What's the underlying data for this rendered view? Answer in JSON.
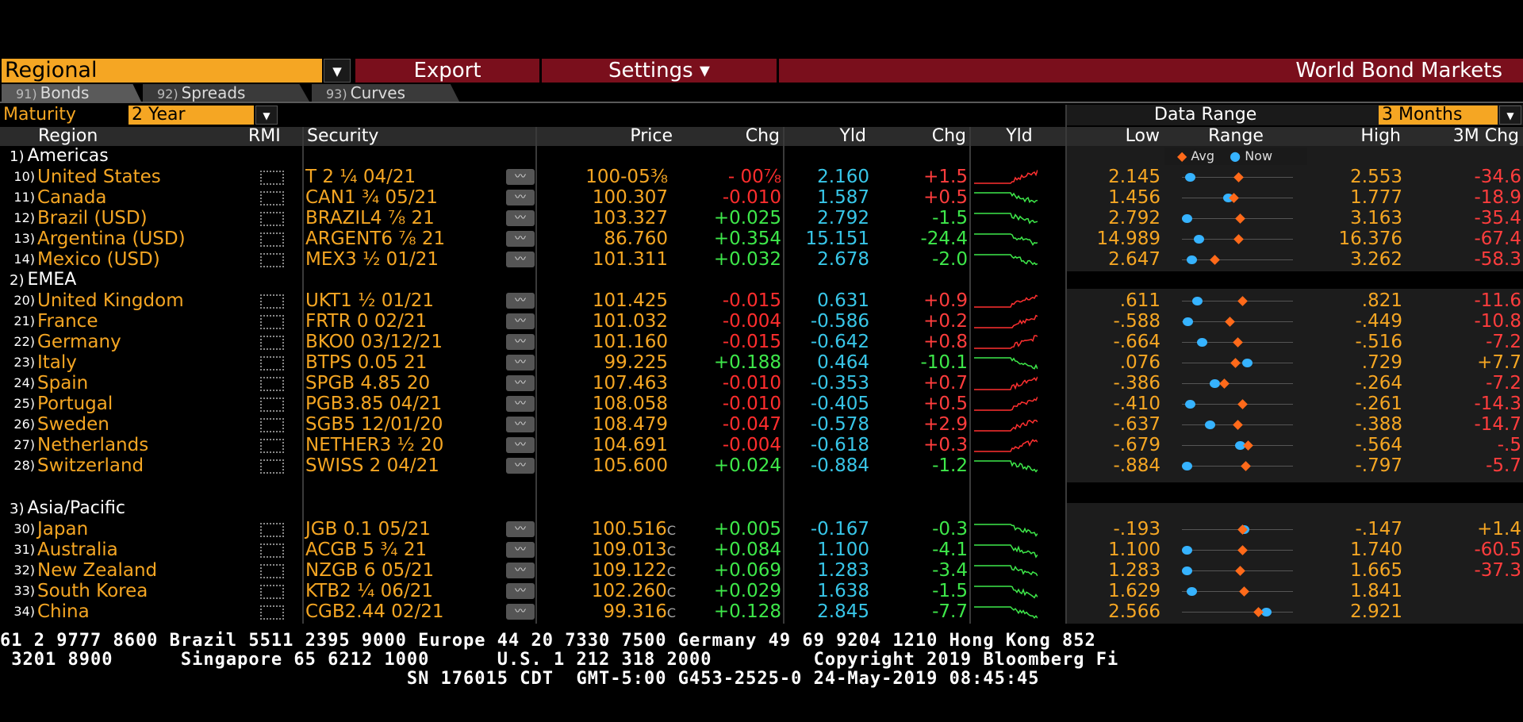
{
  "toolbar": {
    "regional_label": "Regional",
    "export_label": "Export",
    "settings_label": "Settings ▾",
    "title": "World Bond Markets"
  },
  "tabs": [
    {
      "num": "91)",
      "label": "Bonds"
    },
    {
      "num": "92)",
      "label": "Spreads"
    },
    {
      "num": "93)",
      "label": "Curves"
    }
  ],
  "filters": {
    "maturity_label": "Maturity",
    "maturity_value": "2 Year",
    "data_range_label": "Data Range",
    "data_range_value": "3 Months"
  },
  "columns": {
    "region": "Region",
    "rmi": "RMI",
    "security": "Security",
    "price": "Price",
    "chg": "Chg",
    "yld": "Yld",
    "chg2": "Chg",
    "yld_spark": "Yld",
    "low": "Low",
    "range": "Range",
    "high": "High",
    "chg3m": "3M Chg"
  },
  "legend": {
    "avg": "Avg",
    "now": "Now"
  },
  "sections": [
    {
      "num": "1)",
      "label": "Americas"
    },
    {
      "num": "2)",
      "label": "EMEA"
    },
    {
      "num": "3)",
      "label": "Asia/Pacific"
    }
  ],
  "rows": [
    {
      "idx": "10)",
      "region": "United States",
      "security": "T 2 ¼ 04/21",
      "price": "100-05⅜",
      "chg": "- 00⅞",
      "chg_dir": "neg",
      "yld": "2.160",
      "chg2": "+1.5",
      "chg2_dir": "neg",
      "low": "2.145",
      "high": "2.553",
      "chg3m": "-34.6",
      "avg_frac": 0.51,
      "now_frac": 0.03,
      "spark_dir": "up"
    },
    {
      "idx": "11)",
      "region": "Canada",
      "security": "CAN1 ¾ 05/21",
      "price": "100.307",
      "chg": "-0.010",
      "chg_dir": "neg",
      "yld": "1.587",
      "chg2": "+0.5",
      "chg2_dir": "neg",
      "low": "1.456",
      "high": "1.777",
      "chg3m": "-18.9",
      "avg_frac": 0.46,
      "now_frac": 0.41,
      "spark_dir": "down"
    },
    {
      "idx": "12)",
      "region": "Brazil (USD)",
      "security": "BRAZIL4 ⅞ 21",
      "price": "103.327",
      "chg": "+0.025",
      "chg_dir": "pos",
      "yld": "2.792",
      "chg2": "-1.5",
      "chg2_dir": "pos",
      "low": "2.792",
      "low_white": true,
      "high": "3.163",
      "chg3m": "-35.4",
      "avg_frac": 0.52,
      "now_frac": 0.0,
      "spark_dir": "down"
    },
    {
      "idx": "13)",
      "region": "Argentina (USD)",
      "security": "ARGENT6 ⅞ 21",
      "price": "86.760",
      "chg": "+0.354",
      "chg_dir": "pos",
      "yld": "15.151",
      "chg2": "-24.4",
      "chg2_dir": "pos",
      "low": "14.989",
      "high": "16.376",
      "chg3m": "-67.4",
      "avg_frac": 0.51,
      "now_frac": 0.12,
      "spark_dir": "down"
    },
    {
      "idx": "14)",
      "region": "Mexico (USD)",
      "security": "MEX3 ½ 01/21",
      "price": "101.311",
      "chg": "+0.032",
      "chg_dir": "pos",
      "yld": "2.678",
      "chg2": "-2.0",
      "chg2_dir": "pos",
      "low": "2.647",
      "high": "3.262",
      "chg3m": "-58.3",
      "avg_frac": 0.27,
      "now_frac": 0.05,
      "spark_dir": "down"
    },
    {
      "idx": "20)",
      "region": "United Kingdom",
      "security": "UKT1 ½ 01/21",
      "price": "101.425",
      "chg": "-0.015",
      "chg_dir": "neg",
      "yld": "0.631",
      "chg2": "+0.9",
      "chg2_dir": "neg",
      "low": ".611",
      "high": ".821",
      "chg3m": "-11.6",
      "avg_frac": 0.55,
      "now_frac": 0.1,
      "spark_dir": "up"
    },
    {
      "idx": "21)",
      "region": "France",
      "security": "FRTR 0 02/21",
      "price": "101.032",
      "chg": "-0.004",
      "chg_dir": "neg",
      "yld": "-0.586",
      "chg2": "+0.2",
      "chg2_dir": "neg",
      "low": "-.588",
      "high": "-.449",
      "chg3m": "-10.8",
      "avg_frac": 0.42,
      "now_frac": 0.01,
      "spark_dir": "up"
    },
    {
      "idx": "22)",
      "region": "Germany",
      "security": "BKO0 03/12/21",
      "price": "101.160",
      "chg": "-0.015",
      "chg_dir": "neg",
      "yld": "-0.642",
      "chg2": "+0.8",
      "chg2_dir": "neg",
      "low": "-.664",
      "high": "-.516",
      "chg3m": "-7.2",
      "avg_frac": 0.5,
      "now_frac": 0.15,
      "spark_dir": "up"
    },
    {
      "idx": "23)",
      "region": "Italy",
      "security": "BTPS 0.05 21",
      "price": "99.225",
      "chg": "+0.188",
      "chg_dir": "pos",
      "yld": "0.464",
      "chg2": "-10.1",
      "chg2_dir": "pos",
      "low": ".076",
      "high": ".729",
      "chg3m": "+7.7",
      "chg3m_pos": true,
      "avg_frac": 0.48,
      "now_frac": 0.59,
      "spark_dir": "down"
    },
    {
      "idx": "24)",
      "region": "Spain",
      "security": "SPGB 4.85 20",
      "price": "107.463",
      "chg": "-0.010",
      "chg_dir": "neg",
      "yld": "-0.353",
      "chg2": "+0.7",
      "chg2_dir": "neg",
      "low": "-.386",
      "high": "-.264",
      "chg3m": "-7.2",
      "avg_frac": 0.37,
      "now_frac": 0.27,
      "spark_dir": "up"
    },
    {
      "idx": "25)",
      "region": "Portugal",
      "security": "PGB3.85 04/21",
      "price": "108.058",
      "chg": "-0.010",
      "chg_dir": "neg",
      "yld": "-0.405",
      "chg2": "+0.5",
      "chg2_dir": "neg",
      "low": "-.410",
      "high": "-.261",
      "chg3m": "-14.3",
      "avg_frac": 0.55,
      "now_frac": 0.03,
      "spark_dir": "up"
    },
    {
      "idx": "26)",
      "region": "Sweden",
      "security": "SGB5 12/01/20",
      "price": "108.479",
      "chg": "-0.047",
      "chg_dir": "neg",
      "yld": "-0.578",
      "chg2": "+2.9",
      "chg2_dir": "neg",
      "low": "-.637",
      "high": "-.388",
      "chg3m": "-14.7",
      "avg_frac": 0.5,
      "now_frac": 0.23,
      "spark_dir": "up"
    },
    {
      "idx": "27)",
      "region": "Netherlands",
      "security": "NETHER3 ½ 20",
      "price": "104.691",
      "chg": "-0.004",
      "chg_dir": "neg",
      "yld": "-0.618",
      "chg2": "+0.3",
      "chg2_dir": "neg",
      "low": "-.679",
      "high": "-.564",
      "chg3m": "-.5",
      "avg_frac": 0.6,
      "now_frac": 0.52,
      "spark_dir": "up"
    },
    {
      "idx": "28)",
      "region": "Switzerland",
      "security": "SWISS 2 04/21",
      "price": "105.600",
      "chg": "+0.024",
      "chg_dir": "pos",
      "yld": "-0.884",
      "chg2": "-1.2",
      "chg2_dir": "pos",
      "low": "-.884",
      "low_white": true,
      "high": "-.797",
      "chg3m": "-5.7",
      "avg_frac": 0.58,
      "now_frac": 0.0,
      "spark_dir": "down"
    },
    {
      "idx": "30)",
      "region": "Japan",
      "security": "JGB 0.1 05/21",
      "price": "100.516",
      "price_suffix": "C",
      "chg": "+0.005",
      "chg_dir": "pos",
      "yld": "-0.167",
      "chg2": "-0.3",
      "chg2_dir": "pos",
      "low": "-.193",
      "high": "-.147",
      "chg3m": "+1.4",
      "chg3m_pos": true,
      "avg_frac": 0.55,
      "now_frac": 0.56,
      "spark_dir": "down"
    },
    {
      "idx": "31)",
      "region": "Australia",
      "security": "ACGB 5 ¾ 21",
      "price": "109.013",
      "price_suffix": "C",
      "chg": "+0.084",
      "chg_dir": "pos",
      "yld": "1.100",
      "chg2": "-4.1",
      "chg2_dir": "pos",
      "low": "1.100",
      "low_white": true,
      "high": "1.740",
      "chg3m": "-60.5",
      "avg_frac": 0.55,
      "now_frac": 0.0,
      "spark_dir": "down"
    },
    {
      "idx": "32)",
      "region": "New Zealand",
      "security": "NZGB 6 05/21",
      "price": "109.122",
      "price_suffix": "C",
      "chg": "+0.069",
      "chg_dir": "pos",
      "yld": "1.283",
      "chg2": "-3.4",
      "chg2_dir": "pos",
      "low": "1.283",
      "low_white": true,
      "high": "1.665",
      "chg3m": "-37.3",
      "avg_frac": 0.52,
      "now_frac": 0.0,
      "spark_dir": "down"
    },
    {
      "idx": "33)",
      "region": "South Korea",
      "security": "KTB2 ¼ 06/21",
      "price": "102.260",
      "price_suffix": "C",
      "chg": "+0.029",
      "chg_dir": "pos",
      "yld": "1.638",
      "chg2": "-1.5",
      "chg2_dir": "pos",
      "low": "1.629",
      "high": "1.841",
      "chg3m": "",
      "avg_frac": 0.56,
      "now_frac": 0.05,
      "spark_dir": "down"
    },
    {
      "idx": "34)",
      "region": "China",
      "security": "CGB2.44 02/21",
      "price": "99.316",
      "price_suffix": "C",
      "chg": "+0.128",
      "chg_dir": "pos",
      "yld": "2.845",
      "chg2": "-7.7",
      "chg2_dir": "pos",
      "low": "2.566",
      "high": "2.921",
      "chg3m": "",
      "avg_frac": 0.7,
      "now_frac": 0.78,
      "spark_dir": "down"
    }
  ],
  "footer": {
    "line1": "61 2 9777 8600 Brazil 5511 2395 9000 Europe 44 20 7330 7500 Germany 49 69 9204 1210 Hong Kong 852",
    "line2": " 3201 8900      Singapore 65 6212 1000      U.S. 1 212 318 2000         Copyright 2019 Bloomberg Fi",
    "line3": "                                    SN 176015 CDT  GMT-5:00 G453-2525-0 24-May-2019 08:45:45"
  },
  "colors": {
    "amber": "#f5a623",
    "red_button": "#7a0f1c",
    "positive": "#3ee84a",
    "negative": "#ff2d2d",
    "yield": "#38c6e8",
    "avg_marker": "#ff6a1a",
    "now_marker": "#36b3ff"
  }
}
